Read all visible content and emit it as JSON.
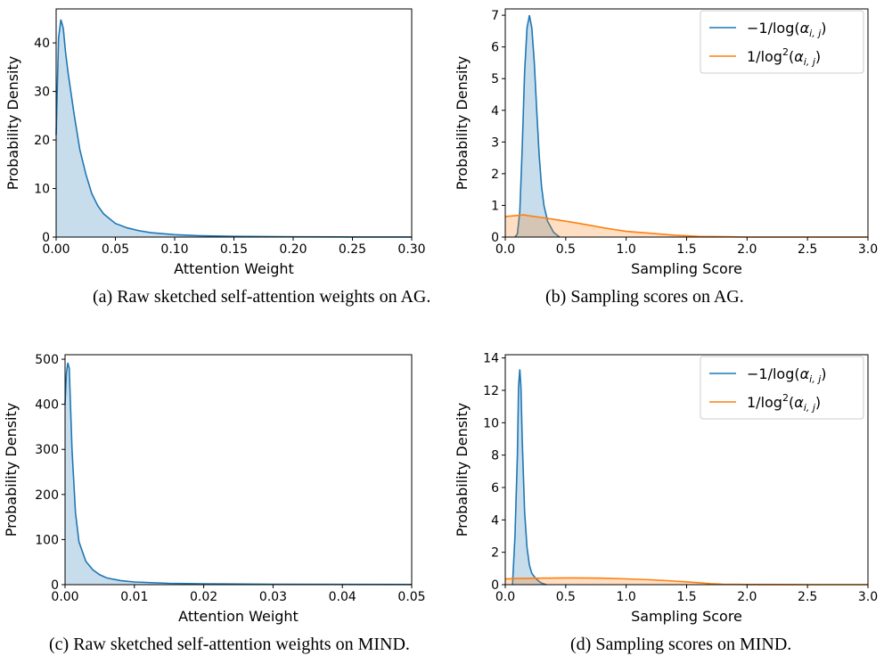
{
  "chart_data": [
    {
      "type": "area",
      "caption": "(a)  Raw sketched self-attention weights on AG.",
      "xlabel": "Attention Weight",
      "ylabel": "Probability Density",
      "xlim": [
        0,
        0.3
      ],
      "ylim": [
        0,
        47
      ],
      "xticks": [
        "0.00",
        "0.05",
        "0.10",
        "0.15",
        "0.20",
        "0.25",
        "0.30"
      ],
      "xtick_values": [
        0,
        0.05,
        0.1,
        0.15,
        0.2,
        0.25,
        0.3
      ],
      "yticks": [
        "0",
        "10",
        "20",
        "30",
        "40"
      ],
      "ytick_values": [
        0,
        10,
        20,
        30,
        40
      ],
      "grid": false,
      "legend": null,
      "series": [
        {
          "color": "#1f77b4",
          "x": [
            0,
            0.002,
            0.004,
            0.006,
            0.008,
            0.01,
            0.015,
            0.02,
            0.025,
            0.03,
            0.035,
            0.04,
            0.05,
            0.06,
            0.07,
            0.08,
            0.1,
            0.12,
            0.15,
            0.2,
            0.25,
            0.3
          ],
          "y": [
            21,
            41,
            44.8,
            43,
            38,
            34,
            25.5,
            18,
            13,
            9,
            6.5,
            4.8,
            2.8,
            1.9,
            1.3,
            0.9,
            0.5,
            0.3,
            0.15,
            0.05,
            0.02,
            0.01
          ]
        }
      ]
    },
    {
      "type": "area",
      "caption": "(b)  Sampling scores on AG.",
      "xlabel": "Sampling Score",
      "ylabel": "Probability Density",
      "xlim": [
        0,
        3
      ],
      "ylim": [
        0,
        7.2
      ],
      "xticks": [
        "0.0",
        "0.5",
        "1.0",
        "1.5",
        "2.0",
        "2.5",
        "3.0"
      ],
      "xtick_values": [
        0,
        0.5,
        1,
        1.5,
        2,
        2.5,
        3
      ],
      "yticks": [
        "0",
        "1",
        "2",
        "3",
        "4",
        "5",
        "6",
        "7"
      ],
      "ytick_values": [
        0,
        1,
        2,
        3,
        4,
        5,
        6,
        7
      ],
      "grid": false,
      "legend": "top-right",
      "series": [
        {
          "name": "−1/log(α_{i,j})",
          "color": "#1f77b4",
          "x": [
            0.08,
            0.1,
            0.12,
            0.14,
            0.16,
            0.18,
            0.2,
            0.22,
            0.24,
            0.26,
            0.28,
            0.3,
            0.32,
            0.35,
            0.4,
            0.45
          ],
          "y": [
            0,
            0.1,
            0.8,
            2.8,
            5.2,
            6.6,
            7.0,
            6.6,
            5.5,
            4.0,
            2.6,
            1.6,
            1.0,
            0.5,
            0.15,
            0
          ]
        },
        {
          "name": "1/log²(α_{i,j})",
          "color": "#ff7f0e",
          "x": [
            0,
            0.1,
            0.15,
            0.2,
            0.3,
            0.4,
            0.5,
            0.6,
            0.7,
            0.8,
            0.9,
            1.0,
            1.2,
            1.4,
            1.5,
            1.6,
            1.8,
            2.0,
            2.5,
            3.0
          ],
          "y": [
            0.65,
            0.68,
            0.7,
            0.67,
            0.62,
            0.56,
            0.5,
            0.44,
            0.37,
            0.3,
            0.24,
            0.18,
            0.12,
            0.06,
            0.04,
            0.02,
            0.01,
            0,
            0,
            0
          ]
        }
      ]
    },
    {
      "type": "area",
      "caption": "(c)  Raw sketched self-attention weights on MIND.",
      "xlabel": "Attention Weight",
      "ylabel": "Probability Density",
      "xlim": [
        0,
        0.05
      ],
      "ylim": [
        0,
        510
      ],
      "xticks": [
        "0.00",
        "0.01",
        "0.02",
        "0.03",
        "0.04",
        "0.05"
      ],
      "xtick_values": [
        0,
        0.01,
        0.02,
        0.03,
        0.04,
        0.05
      ],
      "yticks": [
        "0",
        "100",
        "200",
        "300",
        "400",
        "500"
      ],
      "ytick_values": [
        0,
        100,
        200,
        300,
        400,
        500
      ],
      "grid": false,
      "legend": null,
      "series": [
        {
          "color": "#1f77b4",
          "x": [
            0,
            0.0002,
            0.0004,
            0.0006,
            0.001,
            0.0015,
            0.002,
            0.003,
            0.004,
            0.005,
            0.006,
            0.008,
            0.01,
            0.015,
            0.02,
            0.03,
            0.04,
            0.05
          ],
          "y": [
            400,
            470,
            492,
            480,
            300,
            160,
            95,
            52,
            33,
            22,
            15,
            9,
            6,
            3,
            2,
            1,
            0.5,
            0.3
          ]
        }
      ]
    },
    {
      "type": "area",
      "caption": "(d)  Sampling scores on MIND.",
      "xlabel": "Sampling Score",
      "ylabel": "Probability Density",
      "xlim": [
        0,
        3
      ],
      "ylim": [
        0,
        14.2
      ],
      "xticks": [
        "0.0",
        "0.5",
        "1.0",
        "1.5",
        "2.0",
        "2.5",
        "3.0"
      ],
      "xtick_values": [
        0,
        0.5,
        1,
        1.5,
        2,
        2.5,
        3
      ],
      "yticks": [
        "0",
        "2",
        "4",
        "6",
        "8",
        "10",
        "12",
        "14"
      ],
      "ytick_values": [
        0,
        2,
        4,
        6,
        8,
        10,
        12,
        14
      ],
      "grid": false,
      "legend": "top-right",
      "series": [
        {
          "name": "−1/log(α_{i,j})",
          "color": "#1f77b4",
          "x": [
            0.06,
            0.08,
            0.1,
            0.11,
            0.12,
            0.13,
            0.14,
            0.16,
            0.18,
            0.2,
            0.22,
            0.25,
            0.28,
            0.3,
            0.34
          ],
          "y": [
            0,
            3.0,
            8.0,
            12.2,
            13.3,
            12.2,
            9.0,
            4.5,
            2.3,
            1.2,
            0.7,
            0.4,
            0.2,
            0.1,
            0
          ]
        },
        {
          "name": "1/log²(α_{i,j})",
          "color": "#ff7f0e",
          "x": [
            0,
            0.1,
            0.3,
            0.5,
            0.6,
            0.8,
            1.0,
            1.2,
            1.4,
            1.6,
            1.7,
            1.8,
            2.0,
            2.5,
            3.0
          ],
          "y": [
            0.35,
            0.38,
            0.4,
            0.42,
            0.42,
            0.4,
            0.36,
            0.3,
            0.22,
            0.12,
            0.06,
            0.03,
            0.01,
            0,
            0
          ]
        }
      ]
    }
  ]
}
